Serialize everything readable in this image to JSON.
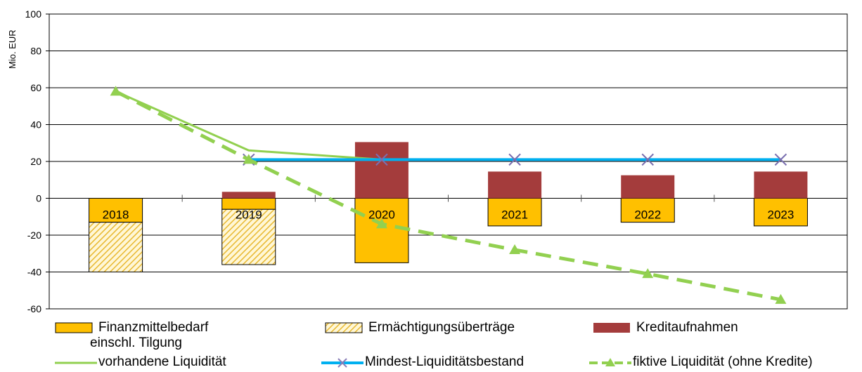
{
  "chart_data": {
    "type": "bar",
    "ylabel": "Mio. EUR",
    "ylim": [
      -60,
      100
    ],
    "yticks": [
      "100",
      "80",
      "60",
      "40",
      "20",
      "0",
      "-20",
      "-40",
      "-60"
    ],
    "categories": [
      "2018",
      "2019",
      "2020",
      "2021",
      "2022",
      "2023"
    ],
    "grid": true,
    "bar_series": [
      {
        "name": "Finanzmittelbedarf einschl. Tilgung",
        "color": "#ffc000",
        "values": [
          -13,
          -6,
          -35,
          -15,
          -13,
          -15
        ]
      },
      {
        "name": "Ermächtigungsüberträge",
        "color": "#f6d56b",
        "pattern": "hatch",
        "values": [
          -27,
          -30,
          0,
          0,
          0,
          0
        ]
      },
      {
        "name": "Kreditaufnahmen",
        "color": "#a43c3c",
        "values": [
          0,
          3.5,
          30.5,
          14.5,
          12.5,
          14.5
        ]
      }
    ],
    "line_series": [
      {
        "name": "vorhandene Liquidität",
        "color": "#92d050",
        "style": "solid",
        "x": [
          "2018",
          "2019",
          "2020"
        ],
        "values": [
          58,
          26,
          21
        ]
      },
      {
        "name": "Mindest-Liquiditätsbestand",
        "color": "#00b0f0",
        "style": "solid",
        "marker": "x",
        "x": [
          "2019",
          "2020",
          "2021",
          "2022",
          "2023"
        ],
        "values": [
          21,
          21,
          21,
          21,
          21
        ]
      },
      {
        "name": "fiktive Liquidität (ohne Kredite)",
        "color": "#92d050",
        "style": "dashed",
        "marker": "triangle",
        "x": [
          "2018",
          "2019",
          "2020",
          "2021",
          "2022",
          "2023"
        ],
        "values": [
          58,
          21,
          -14,
          -28,
          -41,
          -55
        ]
      }
    ]
  },
  "legend": {
    "finanzmittel_line1": "Finanzmittelbedarf",
    "finanzmittel_line2": "einschl. Tilgung",
    "ermaechtigung": "Ermächtigungsüberträge",
    "kredit": "Kreditaufnahmen",
    "vorhandene": "vorhandene Liquidität",
    "mindest": "Mindest-Liquiditätsbestand",
    "fiktive": "fiktive Liquidität (ohne Kredite)"
  }
}
